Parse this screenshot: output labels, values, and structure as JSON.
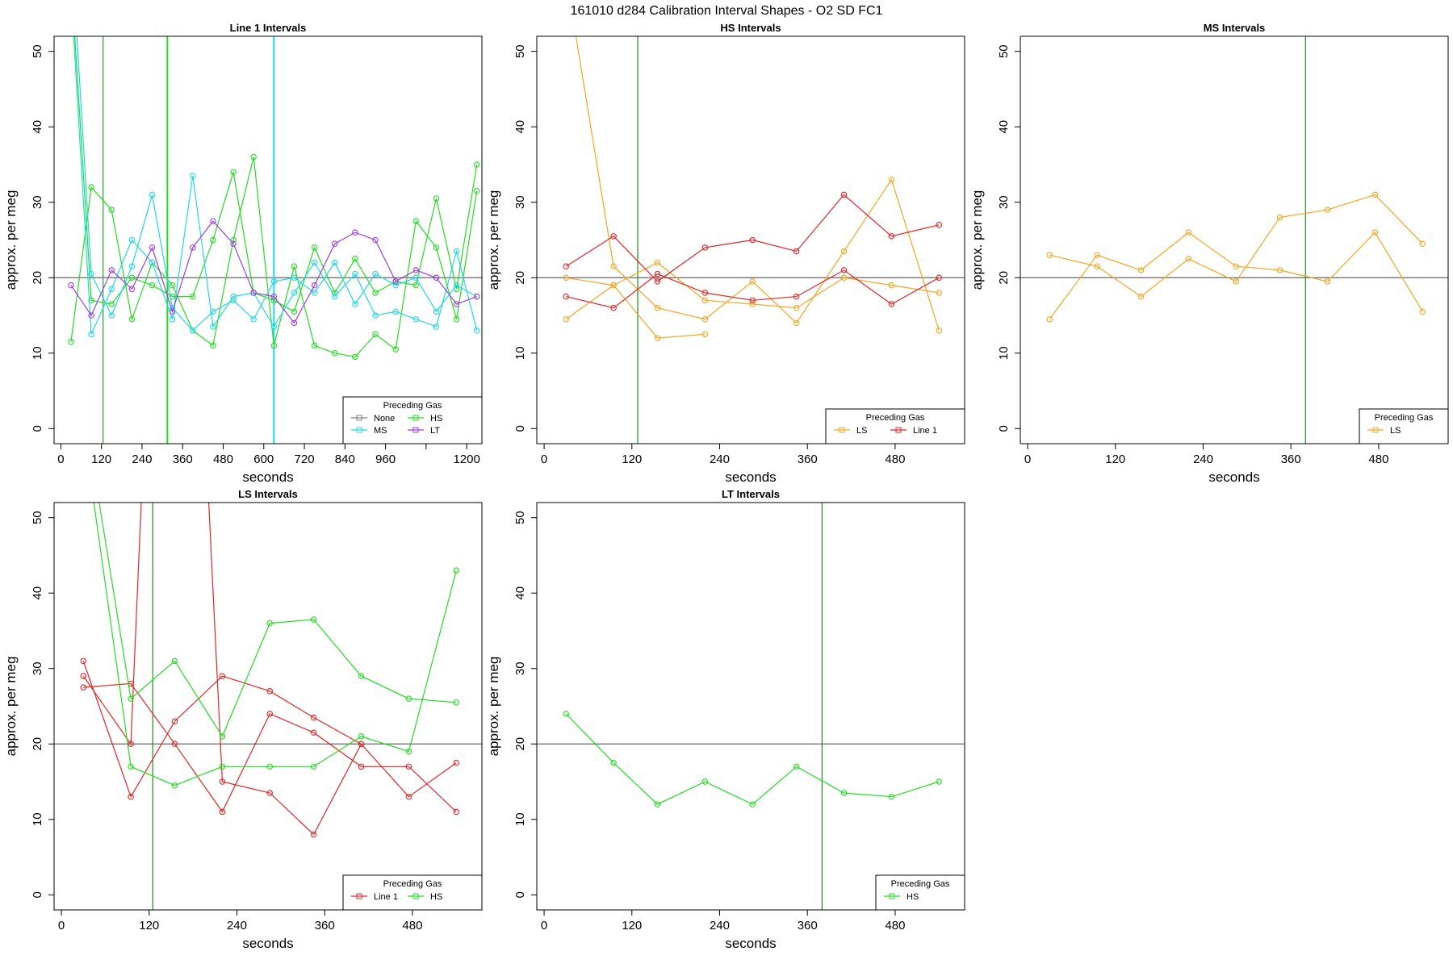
{
  "figure": {
    "title": "161010   d284   Calibration Interval Shapes - O2 SD FC1"
  },
  "colors": {
    "None": "#808080",
    "HS": "#22dd22",
    "MS": "#22d8e8",
    "LT": "#a040e0",
    "LS": "#f4a622",
    "Line 1": "#e32626",
    "ref": "#666666",
    "vline": "#228b22"
  },
  "chart_data": [
    {
      "type": "line",
      "title": "Line 1 Intervals",
      "xlabel": "seconds",
      "ylabel": "approx. per meg",
      "xlim": [
        -20,
        1245
      ],
      "ylim": [
        -2,
        52
      ],
      "xticks": [
        0,
        120,
        240,
        360,
        480,
        600,
        720,
        840,
        960,
        1080,
        1200
      ],
      "xtick_labels": [
        "0",
        "120",
        "240",
        "360",
        "480",
        "600",
        "720",
        "840",
        "960",
        "",
        "1200"
      ],
      "yticks": [
        0,
        10,
        20,
        30,
        40,
        50
      ],
      "hline": 20,
      "vlines": [
        {
          "x": 125,
          "color": "#22aa22"
        },
        {
          "x": 315,
          "color": "#22dd22",
          "width": 2
        },
        {
          "x": 630,
          "color": "#22d8e8",
          "width": 2
        }
      ],
      "legend": {
        "title": "Preceding Gas",
        "entries": [
          "None",
          "HS",
          "MS",
          "LT"
        ],
        "ncol": 2
      },
      "series": [
        {
          "name": "HS",
          "color": "#22dd22",
          "x": [
            30,
            90,
            150,
            210,
            270,
            330,
            390,
            450,
            510,
            570,
            630,
            690,
            750,
            810,
            870,
            930,
            990,
            1050,
            1110,
            1170,
            1230
          ],
          "y": [
            11.5,
            32,
            29,
            14.5,
            22,
            19,
            13,
            11,
            25,
            36,
            11,
            21.5,
            11,
            10,
            9.5,
            12.5,
            10.5,
            27.5,
            24,
            14.5,
            31.5
          ]
        },
        {
          "name": "HS",
          "color": "#22dd22",
          "x": [
            30,
            90,
            150,
            210,
            270,
            330,
            390,
            450,
            510,
            570,
            630,
            690,
            750,
            810,
            870,
            930,
            990,
            1050,
            1110,
            1170,
            1230
          ],
          "y": [
            60,
            17,
            16.5,
            20,
            19,
            17.5,
            17.5,
            25,
            34,
            18,
            17,
            15.5,
            24,
            18,
            22.5,
            18,
            19.5,
            19,
            30.5,
            18.5,
            35
          ]
        },
        {
          "name": "MS",
          "color": "#22d8e8",
          "x": [
            30,
            90,
            150,
            210,
            270,
            330,
            390,
            450,
            510,
            570,
            630,
            690,
            750,
            810,
            870,
            930,
            990,
            1050,
            1110,
            1170,
            1230
          ],
          "y": [
            58,
            12.5,
            18.5,
            25,
            22,
            14.5,
            33.5,
            13.5,
            17.5,
            18,
            13.5,
            18,
            22,
            17.5,
            20.5,
            15,
            15.5,
            14.5,
            13.5,
            23.5,
            13
          ]
        },
        {
          "name": "MS",
          "color": "#22d8e8",
          "x": [
            30,
            90,
            150,
            210,
            270,
            330,
            390,
            450,
            510,
            570,
            630,
            690,
            750,
            810,
            870,
            930,
            990,
            1050,
            1110,
            1170,
            1230
          ],
          "y": [
            65,
            20.5,
            15,
            21.5,
            31,
            16,
            13,
            15.5,
            17,
            14.5,
            19.5,
            20,
            18,
            22,
            16.5,
            20.5,
            19,
            20,
            15.5,
            19,
            17.5
          ]
        },
        {
          "name": "LT",
          "color": "#a040e0",
          "x": [
            30,
            90,
            150,
            210,
            270,
            330,
            390,
            450,
            510,
            570,
            630,
            690,
            750,
            810,
            870,
            930,
            990,
            1050,
            1110,
            1170,
            1230
          ],
          "y": [
            19,
            15,
            21,
            18.5,
            24,
            15.5,
            24,
            27.5,
            24.5,
            18,
            17.5,
            14,
            19,
            24.5,
            26,
            25,
            19.5,
            21,
            20,
            16.5,
            17.5
          ]
        }
      ]
    },
    {
      "type": "line",
      "title": "HS Intervals",
      "xlabel": "seconds",
      "ylabel": "approx. per meg",
      "xlim": [
        -10,
        575
      ],
      "ylim": [
        -2,
        52
      ],
      "xticks": [
        0,
        120,
        240,
        360,
        480
      ],
      "xtick_labels": [
        "0",
        "120",
        "240",
        "360",
        "480"
      ],
      "yticks": [
        0,
        10,
        20,
        30,
        40,
        50
      ],
      "hline": 20,
      "vlines": [
        {
          "x": 128,
          "color": "#228b22"
        }
      ],
      "legend": {
        "title": "Preceding Gas",
        "entries": [
          "LS",
          "Line 1"
        ],
        "ncol": 2
      },
      "series": [
        {
          "name": "LS",
          "color": "#f4a622",
          "x": [
            30,
            95,
            155,
            220,
            285,
            345,
            410,
            475,
            540
          ],
          "y": [
            60,
            21.5,
            16,
            14.5,
            19.5,
            14,
            23.5,
            33,
            13
          ]
        },
        {
          "name": "LS",
          "color": "#f4a622",
          "x": [
            30,
            95,
            155,
            220,
            285,
            345,
            410,
            475,
            540
          ],
          "y": [
            20,
            19,
            22,
            17,
            16.5,
            16,
            20,
            19,
            18
          ]
        },
        {
          "name": "LS",
          "color": "#f4a622",
          "x": [
            30,
            95,
            155,
            220
          ],
          "y": [
            14.5,
            19,
            12,
            12.5
          ]
        },
        {
          "name": "Line 1",
          "color": "#e32626",
          "x": [
            30,
            95,
            155,
            220,
            285,
            345,
            410,
            475,
            540
          ],
          "y": [
            21.5,
            25.5,
            19.5,
            24,
            25,
            23.5,
            31,
            25.5,
            27
          ]
        },
        {
          "name": "Line 1",
          "color": "#e32626",
          "x": [
            30,
            95,
            155,
            220,
            285,
            345,
            410,
            475,
            540
          ],
          "y": [
            17.5,
            16,
            20.5,
            18,
            17,
            17.5,
            21,
            16.5,
            20
          ]
        }
      ]
    },
    {
      "type": "line",
      "title": "MS Intervals",
      "xlabel": "seconds",
      "ylabel": "approx. per meg",
      "xlim": [
        -10,
        575
      ],
      "ylim": [
        -2,
        52
      ],
      "xticks": [
        0,
        120,
        240,
        360,
        480
      ],
      "xtick_labels": [
        "0",
        "120",
        "240",
        "360",
        "480"
      ],
      "yticks": [
        0,
        10,
        20,
        30,
        40,
        50
      ],
      "hline": 20,
      "vlines": [
        {
          "x": 380,
          "color": "#228b22"
        }
      ],
      "legend": {
        "title": "Preceding Gas",
        "entries": [
          "LS"
        ],
        "ncol": 1
      },
      "series": [
        {
          "name": "LS",
          "color": "#f4a622",
          "x": [
            30,
            95,
            155,
            220,
            285,
            345,
            410,
            475,
            540
          ],
          "y": [
            23,
            21.5,
            17.5,
            22.5,
            19.5,
            28,
            29,
            31,
            24.5
          ]
        },
        {
          "name": "LS",
          "color": "#f4a622",
          "x": [
            30,
            95,
            155,
            220,
            285,
            345,
            410,
            475,
            540
          ],
          "y": [
            14.5,
            23,
            21,
            26,
            21.5,
            21,
            19.5,
            26,
            15.5
          ]
        }
      ]
    },
    {
      "type": "line",
      "title": "LS Intervals",
      "xlabel": "seconds",
      "ylabel": "approx. per meg",
      "xlim": [
        -10,
        575
      ],
      "ylim": [
        -2,
        52
      ],
      "xticks": [
        0,
        120,
        240,
        360,
        480
      ],
      "xtick_labels": [
        "0",
        "120",
        "240",
        "360",
        "480"
      ],
      "yticks": [
        0,
        10,
        20,
        30,
        40,
        50
      ],
      "hline": 20,
      "vlines": [
        {
          "x": 125,
          "color": "#228b22"
        }
      ],
      "legend": {
        "title": "Preceding Gas",
        "entries": [
          "Line 1",
          "HS"
        ],
        "ncol": 2
      },
      "series": [
        {
          "name": "Line 1",
          "color": "#e32626",
          "x": [
            30,
            95,
            155,
            220,
            285,
            345,
            410,
            475,
            540
          ],
          "y": [
            31,
            13,
            23,
            29,
            27,
            23.5,
            20,
            13,
            17.5
          ]
        },
        {
          "name": "Line 1",
          "color": "#e32626",
          "x": [
            30,
            95,
            155,
            220,
            285,
            345,
            410,
            475,
            540
          ],
          "y": [
            27.5,
            28,
            20,
            11,
            24,
            21.5,
            17,
            17,
            11
          ]
        },
        {
          "name": "Line 1",
          "color": "#e32626",
          "x": [
            30,
            95,
            115,
            195,
            220,
            285,
            345,
            410
          ],
          "y": [
            29,
            20,
            65,
            65,
            15,
            13.5,
            8,
            20
          ]
        },
        {
          "name": "HS",
          "color": "#22dd22",
          "x": [
            30,
            95,
            155,
            220,
            285,
            345,
            410,
            475,
            540
          ],
          "y": [
            65,
            26,
            31,
            21,
            36,
            36.5,
            29,
            26,
            25.5
          ]
        },
        {
          "name": "HS",
          "color": "#22dd22",
          "x": [
            30,
            95,
            155,
            220,
            285,
            345,
            410,
            475,
            540
          ],
          "y": [
            62,
            17,
            14.5,
            17,
            17,
            17,
            21,
            19,
            43
          ]
        }
      ]
    },
    {
      "type": "line",
      "title": "LT Intervals",
      "xlabel": "seconds",
      "ylabel": "approx. per meg",
      "xlim": [
        -10,
        575
      ],
      "ylim": [
        -2,
        52
      ],
      "xticks": [
        0,
        120,
        240,
        360,
        480
      ],
      "xtick_labels": [
        "0",
        "120",
        "240",
        "360",
        "480"
      ],
      "yticks": [
        0,
        10,
        20,
        30,
        40,
        50
      ],
      "hline": 20,
      "vlines": [
        {
          "x": 380,
          "color": "#228b22"
        }
      ],
      "legend": {
        "title": "Preceding Gas",
        "entries": [
          "HS"
        ],
        "ncol": 1
      },
      "series": [
        {
          "name": "HS",
          "color": "#22dd22",
          "x": [
            30,
            95,
            155,
            220,
            285,
            345,
            410,
            475,
            540
          ],
          "y": [
            24,
            17.5,
            12,
            15,
            12,
            17,
            13.5,
            13,
            15
          ]
        }
      ]
    }
  ]
}
